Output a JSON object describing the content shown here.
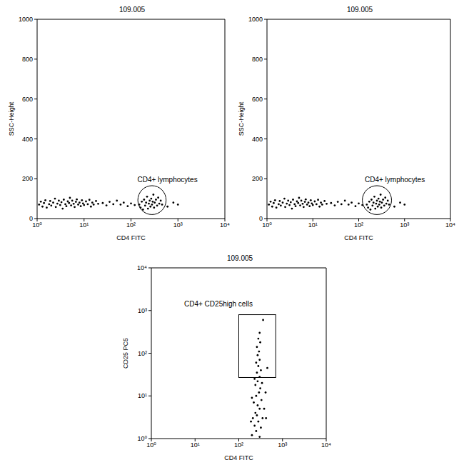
{
  "chart_data": [
    {
      "type": "scatter",
      "title": "109.005",
      "x_label": "CD4 FITC",
      "y_label": "SSC-Height",
      "annotation": "CD4+ lymphocytes",
      "log": "x",
      "color": "#000000",
      "marker": "dot",
      "xlim": [
        1,
        10000
      ],
      "xticks": [
        {
          "value": 1,
          "label": "10⁰"
        },
        {
          "value": 10,
          "label": "10¹"
        },
        {
          "value": 100,
          "label": "10²"
        },
        {
          "value": 1000,
          "label": "10³"
        },
        {
          "value": 10000,
          "label": "10⁴"
        }
      ],
      "ylim": [
        0,
        1000
      ],
      "yticks": [
        0,
        200,
        400,
        600,
        800,
        1000
      ],
      "gate": {
        "shape": "ellipse",
        "x": [
          140,
          560
        ],
        "y": [
          20,
          165
        ]
      },
      "x": [
        1.1,
        1.2,
        1.3,
        1.4,
        1.5,
        1.6,
        1.8,
        1.9,
        2.0,
        2.2,
        2.4,
        2.5,
        2.7,
        2.9,
        3.1,
        3.3,
        3.5,
        3.7,
        4.0,
        4.2,
        4.5,
        4.8,
        5.0,
        5.3,
        5.6,
        6.0,
        6.3,
        6.7,
        7.0,
        7.5,
        8.0,
        8.5,
        9.0,
        9.5,
        10,
        11,
        12,
        13,
        14,
        15,
        16,
        18,
        20,
        25,
        30,
        35,
        42,
        50,
        60,
        70,
        85,
        100,
        120,
        150,
        160,
        170,
        180,
        190,
        200,
        210,
        220,
        230,
        240,
        250,
        260,
        270,
        280,
        290,
        300,
        310,
        320,
        340,
        360,
        380,
        400,
        430,
        460,
        600,
        800,
        1000
      ],
      "values": [
        70,
        85,
        60,
        78,
        92,
        55,
        72,
        88,
        65,
        80,
        100,
        58,
        75,
        90,
        68,
        82,
        50,
        95,
        72,
        62,
        86,
        78,
        104,
        66,
        90,
        74,
        58,
        84,
        96,
        70,
        80,
        62,
        92,
        76,
        68,
        86,
        72,
        94,
        60,
        80,
        70,
        88,
        74,
        78,
        66,
        84,
        72,
        90,
        70,
        80,
        62,
        76,
        68,
        70,
        55,
        85,
        45,
        95,
        65,
        80,
        110,
        50,
        75,
        90,
        60,
        100,
        70,
        85,
        120,
        55,
        80,
        95,
        65,
        105,
        75,
        90,
        70,
        60,
        80,
        70
      ]
    },
    {
      "type": "scatter",
      "title": "109.005",
      "x_label": "CD4 FITC",
      "y_label": "SSC-Height",
      "annotation": "CD4+ lymphocytes",
      "log": "x",
      "color": "#000000",
      "marker": "dot",
      "xlim": [
        1,
        10000
      ],
      "xticks": [
        {
          "value": 1,
          "label": "10⁰"
        },
        {
          "value": 10,
          "label": "10¹"
        },
        {
          "value": 100,
          "label": "10²"
        },
        {
          "value": 1000,
          "label": "10³"
        },
        {
          "value": 10000,
          "label": "10⁴"
        }
      ],
      "ylim": [
        0,
        1000
      ],
      "yticks": [
        0,
        200,
        400,
        600,
        800,
        1000
      ],
      "gate": {
        "shape": "ellipse",
        "x": [
          120,
          520
        ],
        "y": [
          20,
          165
        ]
      },
      "x": [
        1.1,
        1.2,
        1.3,
        1.4,
        1.5,
        1.6,
        1.8,
        1.9,
        2.0,
        2.2,
        2.4,
        2.5,
        2.7,
        2.9,
        3.1,
        3.3,
        3.5,
        3.7,
        4.0,
        4.2,
        4.5,
        4.8,
        5.0,
        5.3,
        5.6,
        6.0,
        6.3,
        6.7,
        7.0,
        7.5,
        8.0,
        8.5,
        9.0,
        9.5,
        10,
        11,
        12,
        13,
        14,
        15,
        16,
        18,
        20,
        25,
        30,
        35,
        42,
        50,
        60,
        70,
        85,
        100,
        120,
        150,
        160,
        170,
        180,
        190,
        200,
        210,
        220,
        230,
        240,
        250,
        260,
        270,
        280,
        290,
        300,
        310,
        320,
        340,
        360,
        380,
        400,
        430,
        460,
        600,
        800,
        1000
      ],
      "values": [
        70,
        85,
        60,
        78,
        92,
        55,
        72,
        88,
        65,
        80,
        100,
        58,
        75,
        90,
        68,
        82,
        50,
        95,
        72,
        62,
        86,
        78,
        104,
        66,
        90,
        74,
        58,
        84,
        96,
        70,
        80,
        62,
        92,
        76,
        68,
        86,
        72,
        94,
        60,
        80,
        70,
        88,
        74,
        78,
        66,
        84,
        72,
        90,
        70,
        80,
        62,
        76,
        68,
        70,
        55,
        85,
        45,
        95,
        65,
        80,
        110,
        50,
        75,
        90,
        60,
        100,
        70,
        85,
        120,
        55,
        80,
        95,
        65,
        105,
        75,
        90,
        70,
        60,
        80,
        70
      ]
    },
    {
      "type": "scatter",
      "title": "109.005",
      "x_label": "CD4 FITC",
      "y_label": "CD25 PC5",
      "annotation": "CD4+ CD25high cells",
      "log": true,
      "color": "#000000",
      "marker": "dot",
      "xlim": [
        1,
        10000
      ],
      "xticks": [
        {
          "value": 1,
          "label": "10⁰"
        },
        {
          "value": 10,
          "label": "10¹"
        },
        {
          "value": 100,
          "label": "10²"
        },
        {
          "value": 1000,
          "label": "10³"
        },
        {
          "value": 10000,
          "label": "10⁴"
        }
      ],
      "ylim": [
        1,
        10000
      ],
      "yticks": [
        {
          "value": 1,
          "label": "10⁰"
        },
        {
          "value": 10,
          "label": "10¹"
        },
        {
          "value": 100,
          "label": "10²"
        },
        {
          "value": 1000,
          "label": "10³"
        },
        {
          "value": 10000,
          "label": "10⁴"
        }
      ],
      "gate": {
        "shape": "rectangle",
        "x": [
          100,
          700
        ],
        "y": [
          27,
          800
        ]
      },
      "x": [
        200,
        250,
        300,
        230,
        280,
        320,
        210,
        260,
        350,
        240,
        300,
        270,
        220,
        330,
        250,
        290,
        310,
        240,
        270,
        300,
        260,
        320,
        280,
        250,
        300,
        270,
        290,
        260,
        310,
        280,
        300,
        360,
        450,
        230,
        340,
        200,
        380,
        190,
        420,
        410
      ],
      "values": [
        1.2,
        1.5,
        1.1,
        2,
        2.5,
        1.8,
        3,
        3.5,
        3,
        4,
        5,
        6,
        7,
        8,
        10,
        12,
        15,
        18,
        22,
        28,
        35,
        40,
        50,
        60,
        70,
        90,
        110,
        140,
        180,
        220,
        300,
        600,
        45,
        25,
        20,
        9,
        5,
        2.5,
        3,
        12
      ]
    }
  ]
}
